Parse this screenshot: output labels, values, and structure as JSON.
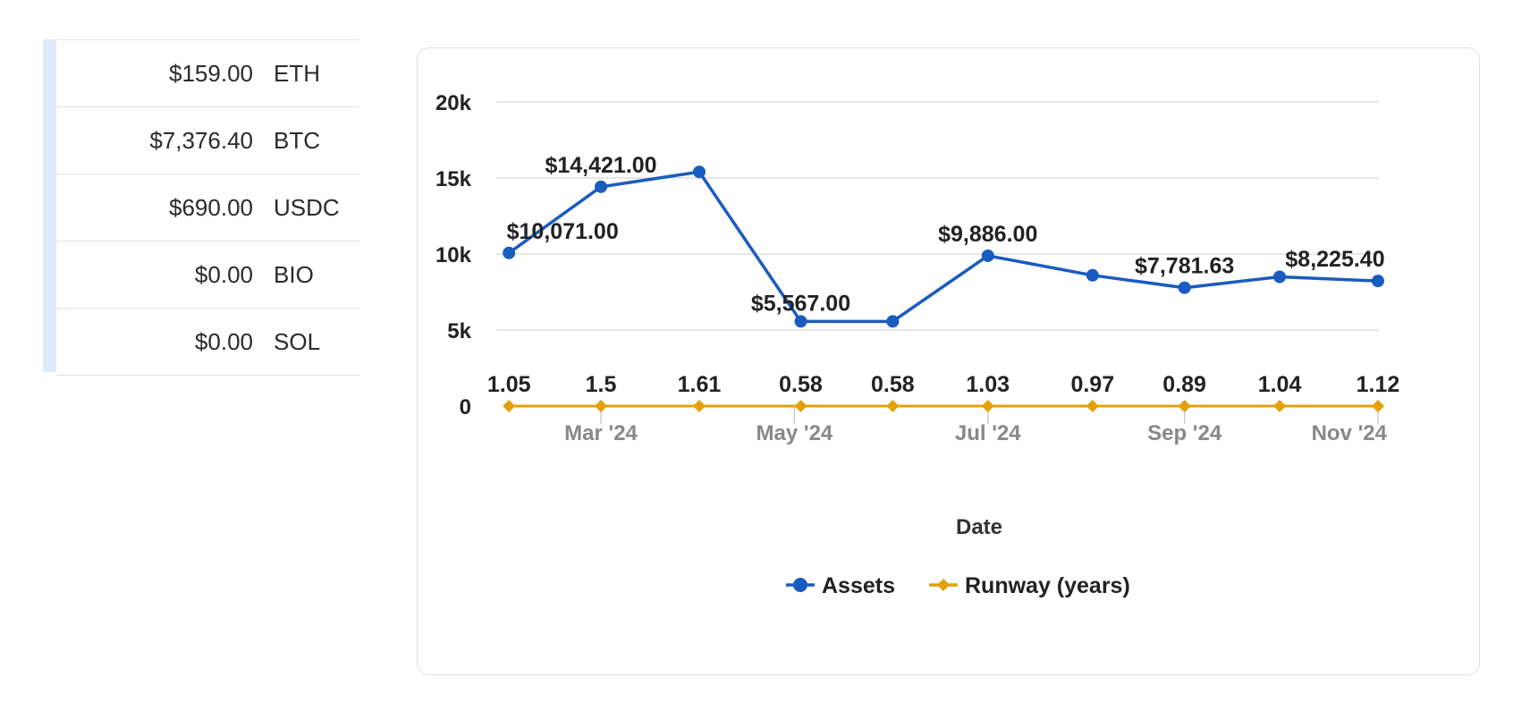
{
  "assets": [
    {
      "value": "$159.00",
      "symbol": "ETH"
    },
    {
      "value": "$7,376.40",
      "symbol": "BTC"
    },
    {
      "value": "$690.00",
      "symbol": "USDC"
    },
    {
      "value": "$0.00",
      "symbol": "BIO"
    },
    {
      "value": "$0.00",
      "symbol": "SOL"
    }
  ],
  "chart_data": {
    "type": "line",
    "xlabel": "Date",
    "ylim": [
      0,
      20000
    ],
    "y_ticks": [
      {
        "value": 0,
        "label": "0"
      },
      {
        "value": 5000,
        "label": "5k"
      },
      {
        "value": 10000,
        "label": "10k"
      },
      {
        "value": 15000,
        "label": "15k"
      },
      {
        "value": 20000,
        "label": "20k"
      }
    ],
    "x_ticks": [
      {
        "date": "2024-03-01",
        "label": "Mar '24"
      },
      {
        "date": "2024-05-01",
        "label": "May '24"
      },
      {
        "date": "2024-07-01",
        "label": "Jul '24"
      },
      {
        "date": "2024-09-01",
        "label": "Sep '24"
      },
      {
        "date": "2024-11-01",
        "label": "Nov '24"
      }
    ],
    "xlim": [
      "2024-01-28",
      "2024-11-01"
    ],
    "grid": true,
    "legend_position": "bottom",
    "series": [
      {
        "name": "Assets",
        "color": "#1a5bbf",
        "marker": "circle",
        "points": [
          {
            "x": "2024-02-01",
            "y": 10071,
            "label": "$10,071.00"
          },
          {
            "x": "2024-03-01",
            "y": 14421,
            "label": "$14,421.00"
          },
          {
            "x": "2024-04-01",
            "y": 15400,
            "label": ""
          },
          {
            "x": "2024-05-03",
            "y": 5567,
            "label": "$5,567.00"
          },
          {
            "x": "2024-06-01",
            "y": 5567,
            "label": ""
          },
          {
            "x": "2024-07-01",
            "y": 9886,
            "label": "$9,886.00"
          },
          {
            "x": "2024-08-03",
            "y": 8600,
            "label": ""
          },
          {
            "x": "2024-09-01",
            "y": 7781.63,
            "label": "$7,781.63"
          },
          {
            "x": "2024-10-01",
            "y": 8500,
            "label": ""
          },
          {
            "x": "2024-11-01",
            "y": 8225.4,
            "label": "$8,225.40"
          }
        ]
      },
      {
        "name": "Runway (years)",
        "color": "#e3a008",
        "marker": "diamond",
        "points": [
          {
            "x": "2024-02-01",
            "y": 1.05,
            "label": "1.05"
          },
          {
            "x": "2024-03-01",
            "y": 1.5,
            "label": "1.5"
          },
          {
            "x": "2024-04-01",
            "y": 1.61,
            "label": "1.61"
          },
          {
            "x": "2024-05-03",
            "y": 0.58,
            "label": "0.58"
          },
          {
            "x": "2024-06-01",
            "y": 0.58,
            "label": "0.58"
          },
          {
            "x": "2024-07-01",
            "y": 1.03,
            "label": "1.03"
          },
          {
            "x": "2024-08-03",
            "y": 0.97,
            "label": "0.97"
          },
          {
            "x": "2024-09-01",
            "y": 0.89,
            "label": "0.89"
          },
          {
            "x": "2024-10-01",
            "y": 1.04,
            "label": "1.04"
          },
          {
            "x": "2024-11-01",
            "y": 1.12,
            "label": "1.12"
          }
        ]
      }
    ]
  }
}
